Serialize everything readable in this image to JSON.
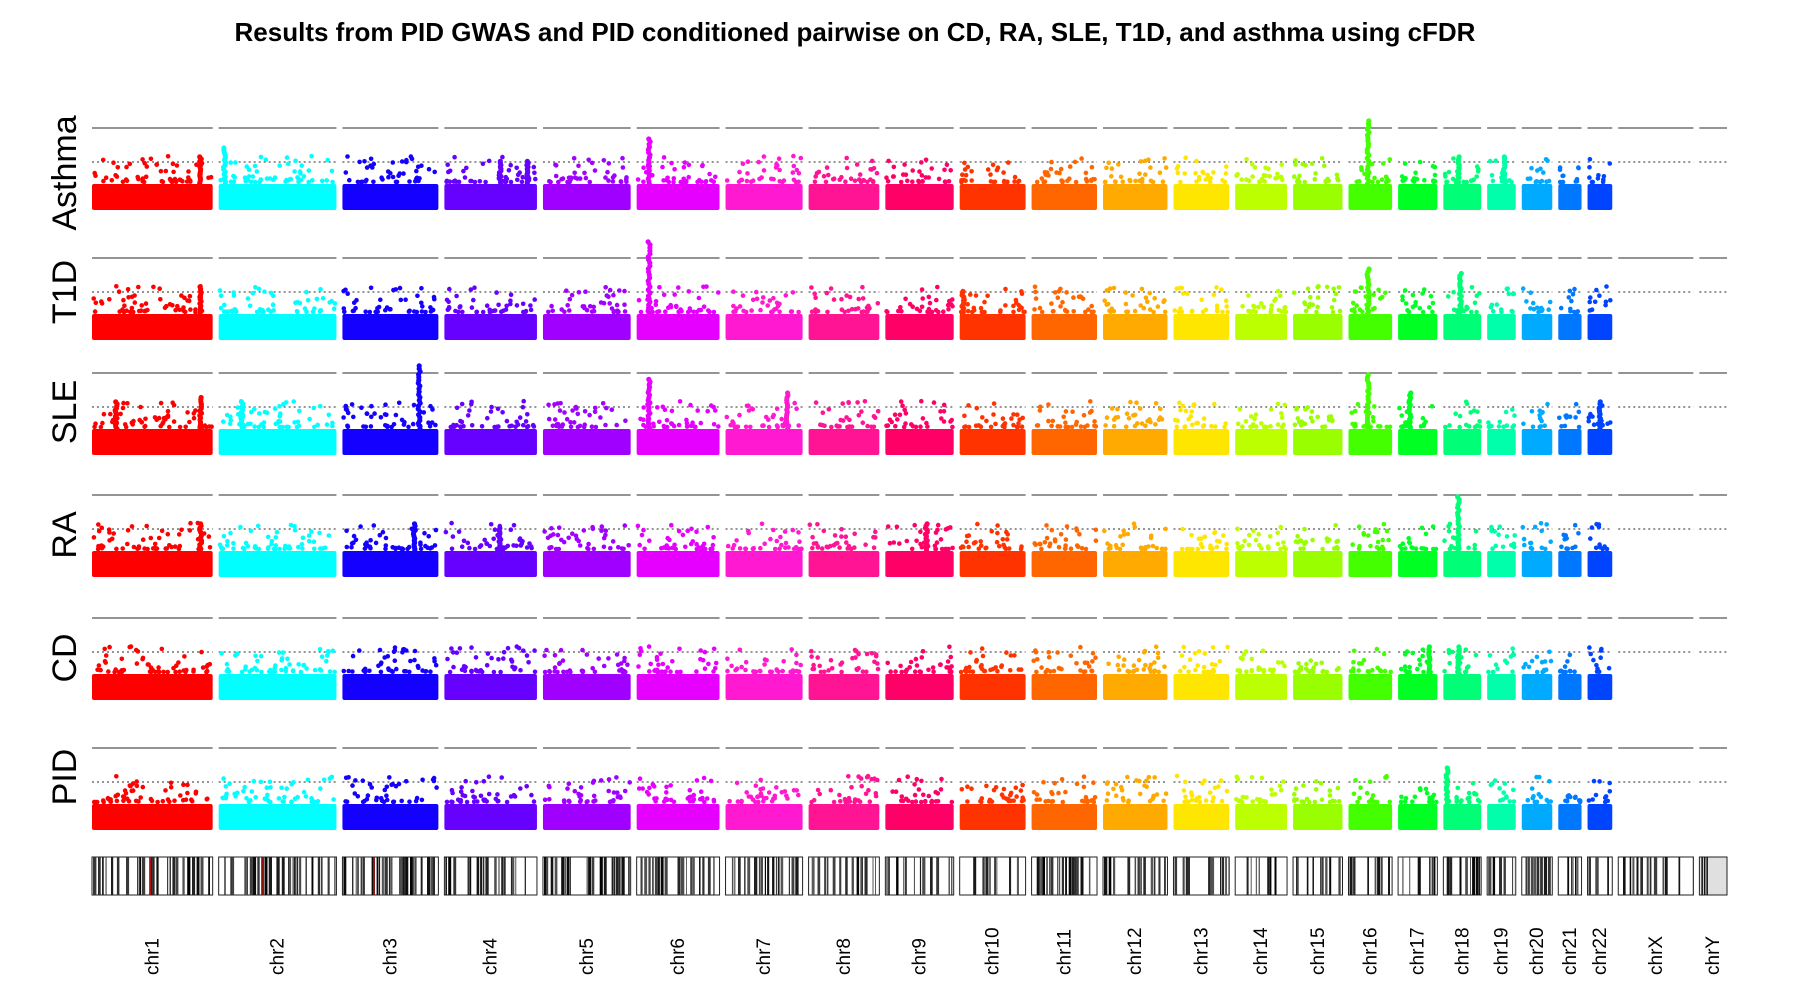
{
  "chart_data": {
    "type": "scatter",
    "subtype": "stacked manhattan plot",
    "title": "Results from PID GWAS and PID conditioned pairwise on CD, RA, SLE, T1D, and asthma using cFDR",
    "tracks": [
      "Asthma",
      "T1D",
      "SLE",
      "RA",
      "CD",
      "PID"
    ],
    "threshold_lines": [
      "solid",
      "dotted"
    ],
    "chromosomes": [
      {
        "name": "chr1",
        "color": "#ff0000",
        "length": 249
      },
      {
        "name": "chr2",
        "color": "#00ffff",
        "length": 243
      },
      {
        "name": "chr3",
        "color": "#1400ff",
        "length": 198
      },
      {
        "name": "chr4",
        "color": "#6600ff",
        "length": 191
      },
      {
        "name": "chr5",
        "color": "#a000ff",
        "length": 181
      },
      {
        "name": "chr6",
        "color": "#e600ff",
        "length": 171
      },
      {
        "name": "chr7",
        "color": "#ff19d0",
        "length": 159
      },
      {
        "name": "chr8",
        "color": "#ff1493",
        "length": 146
      },
      {
        "name": "chr9",
        "color": "#ff0066",
        "length": 141
      },
      {
        "name": "chr10",
        "color": "#ff3300",
        "length": 136
      },
      {
        "name": "chr11",
        "color": "#ff6600",
        "length": 135
      },
      {
        "name": "chr12",
        "color": "#ffaa00",
        "length": 133
      },
      {
        "name": "chr13",
        "color": "#ffe600",
        "length": 115
      },
      {
        "name": "chr14",
        "color": "#bbff00",
        "length": 107
      },
      {
        "name": "chr15",
        "color": "#99ff00",
        "length": 102
      },
      {
        "name": "chr16",
        "color": "#44ff00",
        "length": 90
      },
      {
        "name": "chr17",
        "color": "#00ff22",
        "length": 81
      },
      {
        "name": "chr18",
        "color": "#00ff77",
        "length": 78
      },
      {
        "name": "chr19",
        "color": "#00ffaa",
        "length": 59
      },
      {
        "name": "chr20",
        "color": "#00aaff",
        "length": 63
      },
      {
        "name": "chr21",
        "color": "#0077ff",
        "length": 48
      },
      {
        "name": "chr22",
        "color": "#0044ff",
        "length": 51
      },
      {
        "name": "chrX",
        "color": "#000000",
        "length": 155
      },
      {
        "name": "chrY",
        "color": "#000000",
        "length": 57
      }
    ],
    "peaks": {
      "Asthma": [
        {
          "chr": 1,
          "pos": 0.9,
          "height": 0.6
        },
        {
          "chr": 2,
          "pos": 0.05,
          "height": 0.7
        },
        {
          "chr": 4,
          "pos": 0.6,
          "height": 0.55
        },
        {
          "chr": 4,
          "pos": 0.9,
          "height": 0.55
        },
        {
          "chr": 6,
          "pos": 0.15,
          "height": 0.8
        },
        {
          "chr": 16,
          "pos": 0.45,
          "height": 1.0
        },
        {
          "chr": 18,
          "pos": 0.4,
          "height": 0.6
        },
        {
          "chr": 19,
          "pos": 0.6,
          "height": 0.6
        }
      ],
      "T1D": [
        {
          "chr": 1,
          "pos": 0.9,
          "height": 0.6
        },
        {
          "chr": 6,
          "pos": 0.15,
          "height": 1.1
        },
        {
          "chr": 10,
          "pos": 0.05,
          "height": 0.55
        },
        {
          "chr": 16,
          "pos": 0.45,
          "height": 0.8
        },
        {
          "chr": 18,
          "pos": 0.45,
          "height": 0.75
        }
      ],
      "SLE": [
        {
          "chr": 1,
          "pos": 0.2,
          "height": 0.6
        },
        {
          "chr": 1,
          "pos": 0.9,
          "height": 0.65
        },
        {
          "chr": 2,
          "pos": 0.2,
          "height": 0.6
        },
        {
          "chr": 3,
          "pos": 0.8,
          "height": 1.0
        },
        {
          "chr": 6,
          "pos": 0.15,
          "height": 0.85
        },
        {
          "chr": 7,
          "pos": 0.8,
          "height": 0.7
        },
        {
          "chr": 16,
          "pos": 0.45,
          "height": 0.9
        },
        {
          "chr": 17,
          "pos": 0.3,
          "height": 0.7
        },
        {
          "chr": 22,
          "pos": 0.5,
          "height": 0.6
        }
      ],
      "RA": [
        {
          "chr": 1,
          "pos": 0.9,
          "height": 0.6
        },
        {
          "chr": 3,
          "pos": 0.75,
          "height": 0.6
        },
        {
          "chr": 4,
          "pos": 0.6,
          "height": 0.55
        },
        {
          "chr": 9,
          "pos": 0.6,
          "height": 0.6
        },
        {
          "chr": 18,
          "pos": 0.4,
          "height": 0.9
        }
      ],
      "CD": [
        {
          "chr": 17,
          "pos": 0.8,
          "height": 0.6
        },
        {
          "chr": 18,
          "pos": 0.4,
          "height": 0.6
        }
      ],
      "PID": [
        {
          "chr": 18,
          "pos": 0.1,
          "height": 0.7
        }
      ]
    }
  }
}
